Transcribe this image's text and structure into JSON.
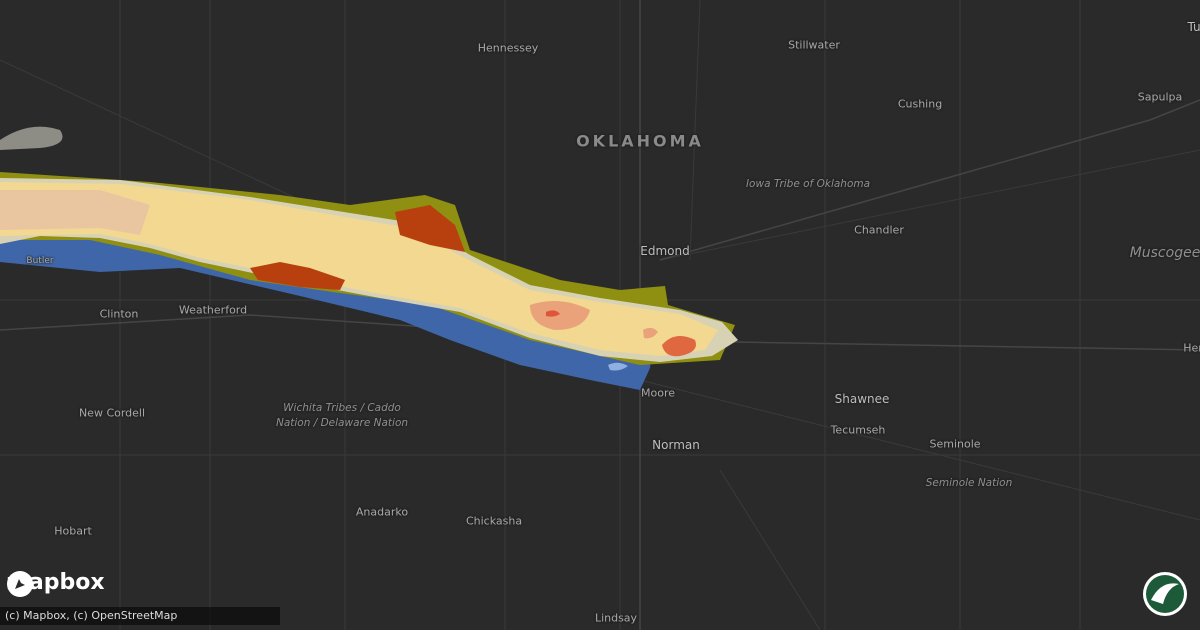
{
  "map": {
    "state_label": "OKLAHOMA",
    "places": [
      "Hennessey",
      "Stillwater",
      "Tu",
      "Sapulpa",
      "Cushing",
      "Chandler",
      "Edmond",
      "Butler",
      "Clinton",
      "Weatherford",
      "Her",
      "Shawnee",
      "Moore",
      "Tecumseh",
      "New Cordell",
      "Norman",
      "Seminole",
      "Anadarko",
      "Chickasha",
      "Hobart",
      "Lindsay"
    ],
    "tribal_areas": [
      "Iowa Tribe of Oklahoma",
      "Muscogee",
      "Wichita Tribes / Caddo",
      "Nation / Delaware Nation",
      "Seminole Nation"
    ]
  },
  "branding": {
    "logo": "mapbox",
    "attribution": "(c) Mapbox, (c) OpenStreetMap"
  }
}
